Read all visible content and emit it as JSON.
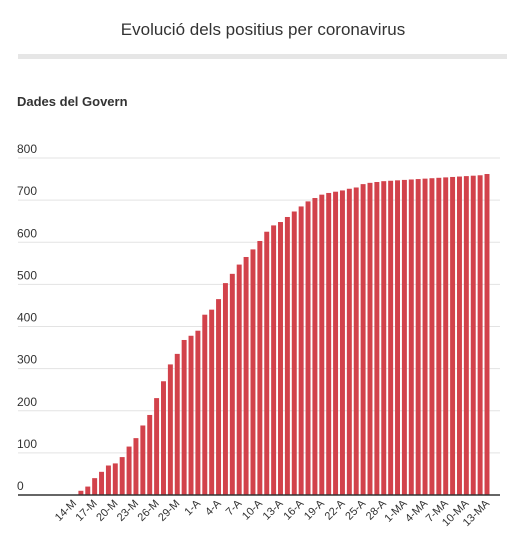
{
  "chart_data": {
    "type": "bar",
    "title": "Evolució dels positius per coronavirus",
    "subtitle": "Dades del Govern",
    "xlabel": "",
    "ylabel": "",
    "ylim": [
      0,
      800
    ],
    "yticks": [
      0,
      100,
      200,
      300,
      400,
      500,
      600,
      700,
      800
    ],
    "grid": true,
    "bar_color": "#d2424b",
    "categories": [
      "14-M",
      "15-M",
      "16-M",
      "17-M",
      "18-M",
      "19-M",
      "20-M",
      "21-M",
      "22-M",
      "23-M",
      "24-M",
      "25-M",
      "26-M",
      "27-M",
      "28-M",
      "29-M",
      "30-M",
      "31-M",
      "1-A",
      "2-A",
      "3-A",
      "4-A",
      "5-A",
      "6-A",
      "7-A",
      "8-A",
      "9-A",
      "10-A",
      "11-A",
      "12-A",
      "13-A",
      "14-A",
      "15-A",
      "16-A",
      "17-A",
      "18-A",
      "19-A",
      "20-A",
      "21-A",
      "22-A",
      "23-A",
      "24-A",
      "25-A",
      "26-A",
      "27-A",
      "28-A",
      "29-A",
      "30-A",
      "1-MA",
      "2-MA",
      "3-MA",
      "4-MA",
      "5-MA",
      "6-MA",
      "7-MA",
      "8-MA",
      "9-MA",
      "10-MA",
      "11-MA",
      "12-MA",
      "13-MA"
    ],
    "shown_xtick_labels": [
      "14-M",
      "17-M",
      "20-M",
      "23-M",
      "26-M",
      "29-M",
      "1-A",
      "4-A",
      "7-A",
      "10-A",
      "13-A",
      "16-A",
      "19-A",
      "22-A",
      "25-A",
      "28-A",
      "1-MA",
      "4-MA",
      "7-MA",
      "10-MA",
      "13-MA"
    ],
    "values": [
      1,
      10,
      20,
      40,
      55,
      70,
      75,
      90,
      115,
      135,
      165,
      190,
      230,
      270,
      310,
      335,
      368,
      378,
      390,
      428,
      440,
      465,
      503,
      525,
      547,
      565,
      583,
      603,
      625,
      640,
      648,
      660,
      673,
      685,
      697,
      705,
      713,
      717,
      720,
      723,
      727,
      730,
      738,
      741,
      743,
      745,
      746,
      747,
      748,
      749,
      750,
      751,
      752,
      753,
      754,
      755,
      756,
      757,
      758,
      759,
      762
    ]
  }
}
